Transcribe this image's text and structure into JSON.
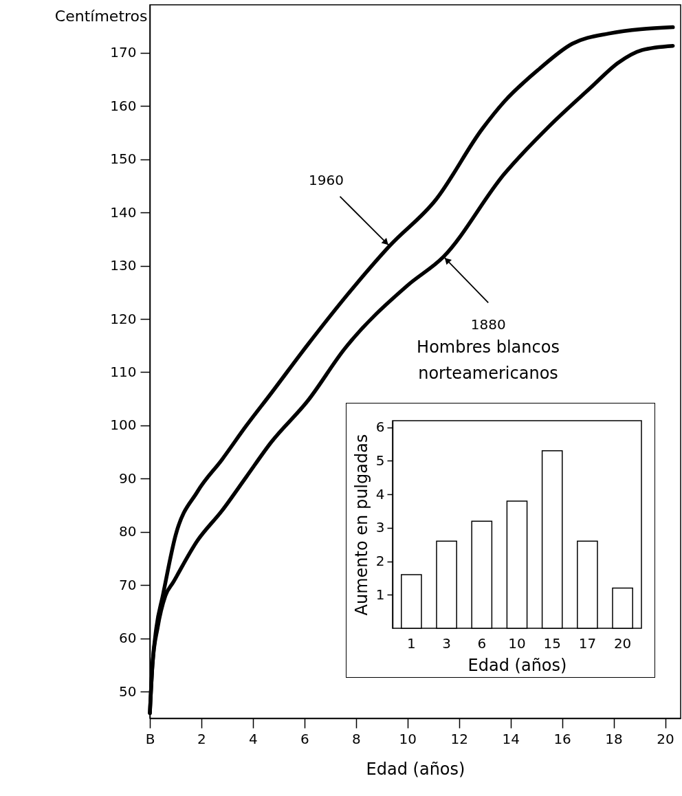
{
  "chart_data": [
    {
      "type": "line",
      "xlabel": "Edad (años)",
      "ylabel": "Centímetros",
      "xlim": [
        0,
        20.6
      ],
      "ylim": [
        45,
        179
      ],
      "xticks": [
        {
          "value": 0,
          "label": "B"
        },
        2,
        4,
        6,
        8,
        10,
        12,
        14,
        16,
        18,
        20
      ],
      "yticks": [
        50,
        60,
        70,
        80,
        90,
        100,
        110,
        120,
        130,
        140,
        150,
        160,
        170
      ],
      "grid": false,
      "marker": "none",
      "line_style": "solid",
      "series": [
        {
          "color": "#000000",
          "x": [
            0,
            0.1,
            0.25,
            0.5,
            1,
            1.85,
            2.8,
            3.75,
            4.7,
            6.1,
            8,
            9.3,
            11.1,
            12.9,
            13.75,
            15.1,
            16.4,
            17.8,
            20.3
          ],
          "values": [
            46,
            55,
            62,
            68,
            79.4,
            87.6,
            93.6,
            100,
            106,
            115,
            126.5,
            133.7,
            142.4,
            155.7,
            160.8,
            166.9,
            171.7,
            173.6,
            174.8
          ]
        },
        {
          "color": "#000000",
          "x": [
            0,
            0.1,
            0.3,
            0.6,
            0.9,
            1.85,
            2.8,
            3.75,
            4.7,
            6.14,
            7.56,
            10,
            11.4,
            13.75,
            15.5,
            17.1,
            18.2,
            19.1,
            20.3
          ],
          "values": [
            46,
            55,
            62,
            68,
            70.5,
            78.4,
            84,
            90.4,
            96.8,
            104.7,
            114.4,
            126.3,
            131.7,
            147.2,
            156.2,
            163.4,
            168.2,
            170.5,
            171.3
          ]
        }
      ],
      "annotations": [
        {
          "text": "1960",
          "x": 9.3,
          "y": 133.7
        },
        {
          "text": "1880",
          "x": 11.4,
          "y": 131.7
        }
      ]
    },
    {
      "type": "bar",
      "title": "Hombres blancos norteamericanos",
      "xlabel": "Edad (años)",
      "ylabel": "Aumento en pulgadas",
      "categories": [
        "1",
        "3",
        "6",
        "10",
        "15",
        "17",
        "20"
      ],
      "values": [
        1.6,
        2.6,
        3.2,
        3.8,
        5.3,
        2.6,
        1.2
      ],
      "color": "#ffffff",
      "ylim": [
        0,
        6.2
      ],
      "yticks": [
        1,
        2,
        3,
        4,
        5,
        6
      ]
    }
  ]
}
